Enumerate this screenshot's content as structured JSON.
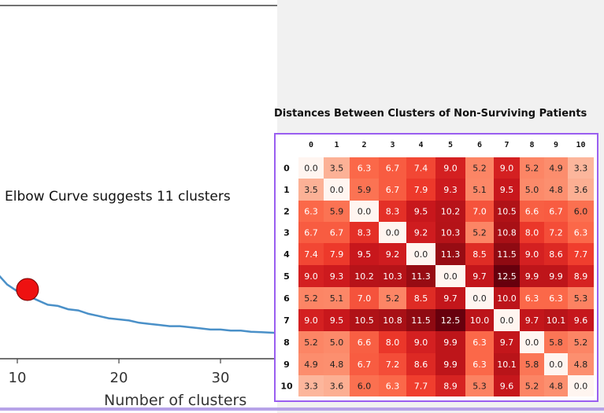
{
  "elbow": {
    "annotation": "Elbow Curve suggests 11 clusters",
    "xlabel": "Number of clusters",
    "x_ticks": [
      "10",
      "20",
      "30"
    ],
    "line_color": "#4a90c8",
    "marker_color": "#ee1111"
  },
  "chart_data": [
    {
      "type": "line",
      "title": "",
      "xlabel": "Number of clusters",
      "ylabel": "",
      "xlim": [
        8,
        35.5
      ],
      "x_ticks": [
        10,
        20,
        30
      ],
      "series": [
        {
          "x": [
            8,
            9,
            10,
            11,
            12,
            13,
            14,
            15,
            16,
            17,
            18,
            19,
            20,
            21,
            22,
            23,
            24,
            25,
            26,
            27,
            28,
            29,
            30,
            31,
            32,
            33,
            34,
            35.4
          ],
          "y": [
            1.0,
            0.95,
            0.92,
            0.9,
            0.88,
            0.86,
            0.855,
            0.84,
            0.835,
            0.82,
            0.81,
            0.8,
            0.795,
            0.79,
            0.78,
            0.775,
            0.77,
            0.765,
            0.765,
            0.76,
            0.755,
            0.75,
            0.75,
            0.745,
            0.745,
            0.74,
            0.738,
            0.735
          ]
        }
      ],
      "highlight": {
        "x": 11,
        "label": "Elbow Curve suggests 11 clusters"
      },
      "grid": false
    },
    {
      "type": "heatmap",
      "title": "Distances Between Clusters of Non-Surviving Patients",
      "row_labels": [
        "0",
        "1",
        "2",
        "3",
        "4",
        "5",
        "6",
        "7",
        "8",
        "9",
        "10"
      ],
      "col_labels": [
        "0",
        "1",
        "2",
        "3",
        "4",
        "5",
        "6",
        "7",
        "8",
        "9",
        "10"
      ],
      "values": [
        [
          0.0,
          3.5,
          6.3,
          6.7,
          7.4,
          9.0,
          5.2,
          9.0,
          5.2,
          4.9,
          3.3
        ],
        [
          3.5,
          0.0,
          5.9,
          6.7,
          7.9,
          9.3,
          5.1,
          9.5,
          5.0,
          4.8,
          3.6
        ],
        [
          6.3,
          5.9,
          0.0,
          8.3,
          9.5,
          10.2,
          7.0,
          10.5,
          6.6,
          6.7,
          6.0
        ],
        [
          6.7,
          6.7,
          8.3,
          0.0,
          9.2,
          10.3,
          5.2,
          10.8,
          8.0,
          7.2,
          6.3
        ],
        [
          7.4,
          7.9,
          9.5,
          9.2,
          0.0,
          11.3,
          8.5,
          11.5,
          9.0,
          8.6,
          7.7
        ],
        [
          9.0,
          9.3,
          10.2,
          10.3,
          11.3,
          0.0,
          9.7,
          12.5,
          9.9,
          9.9,
          8.9
        ],
        [
          5.2,
          5.1,
          7.0,
          5.2,
          8.5,
          9.7,
          0.0,
          10.0,
          6.3,
          6.3,
          5.3
        ],
        [
          9.0,
          9.5,
          10.5,
          10.8,
          11.5,
          12.5,
          10.0,
          0.0,
          9.7,
          10.1,
          9.6
        ],
        [
          5.2,
          5.0,
          6.6,
          8.0,
          9.0,
          9.9,
          6.3,
          9.7,
          0.0,
          5.8,
          5.2
        ],
        [
          4.9,
          4.8,
          6.7,
          7.2,
          8.6,
          9.9,
          6.3,
          10.1,
          5.8,
          0.0,
          4.8
        ],
        [
          3.3,
          3.6,
          6.0,
          6.3,
          7.7,
          8.9,
          5.3,
          9.6,
          5.2,
          4.8,
          0.0
        ]
      ],
      "vmin": 0.0,
      "vmax": 12.5,
      "colormap": "Reds"
    }
  ]
}
